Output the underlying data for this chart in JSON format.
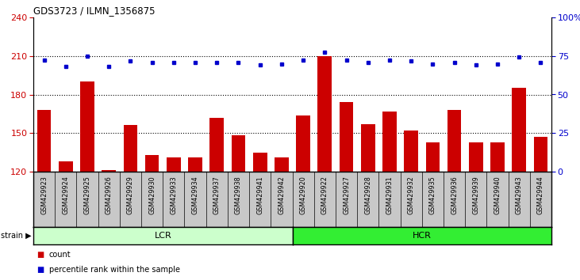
{
  "title": "GDS3723 / ILMN_1356875",
  "samples": [
    "GSM429923",
    "GSM429924",
    "GSM429925",
    "GSM429926",
    "GSM429929",
    "GSM429930",
    "GSM429933",
    "GSM429934",
    "GSM429937",
    "GSM429938",
    "GSM429941",
    "GSM429942",
    "GSM429920",
    "GSM429922",
    "GSM429927",
    "GSM429928",
    "GSM429931",
    "GSM429932",
    "GSM429935",
    "GSM429936",
    "GSM429939",
    "GSM429940",
    "GSM429943",
    "GSM429944"
  ],
  "counts": [
    168,
    128,
    190,
    121,
    156,
    133,
    131,
    131,
    162,
    148,
    135,
    131,
    164,
    210,
    174,
    157,
    167,
    152,
    143,
    168,
    143,
    143,
    185,
    147
  ],
  "percentile_ranks": [
    207,
    202,
    210,
    202,
    206,
    205,
    205,
    205,
    205,
    205,
    203,
    204,
    207,
    213,
    207,
    205,
    207,
    206,
    204,
    205,
    203,
    204,
    209,
    205
  ],
  "lcr_count": 12,
  "hcr_count": 12,
  "ylim_left": [
    120,
    240
  ],
  "ylim_right": [
    0,
    100
  ],
  "yticks_left": [
    120,
    150,
    180,
    210,
    240
  ],
  "yticks_right": [
    0,
    25,
    50,
    75,
    100
  ],
  "bar_color": "#cc0000",
  "dot_color": "#0000cc",
  "background_color": "#ffffff",
  "tick_area_color": "#c8c8c8",
  "lcr_color": "#ccffcc",
  "hcr_color": "#33ee33",
  "strain_label": "strain",
  "legend_count": "count",
  "legend_pct": "percentile rank within the sample"
}
